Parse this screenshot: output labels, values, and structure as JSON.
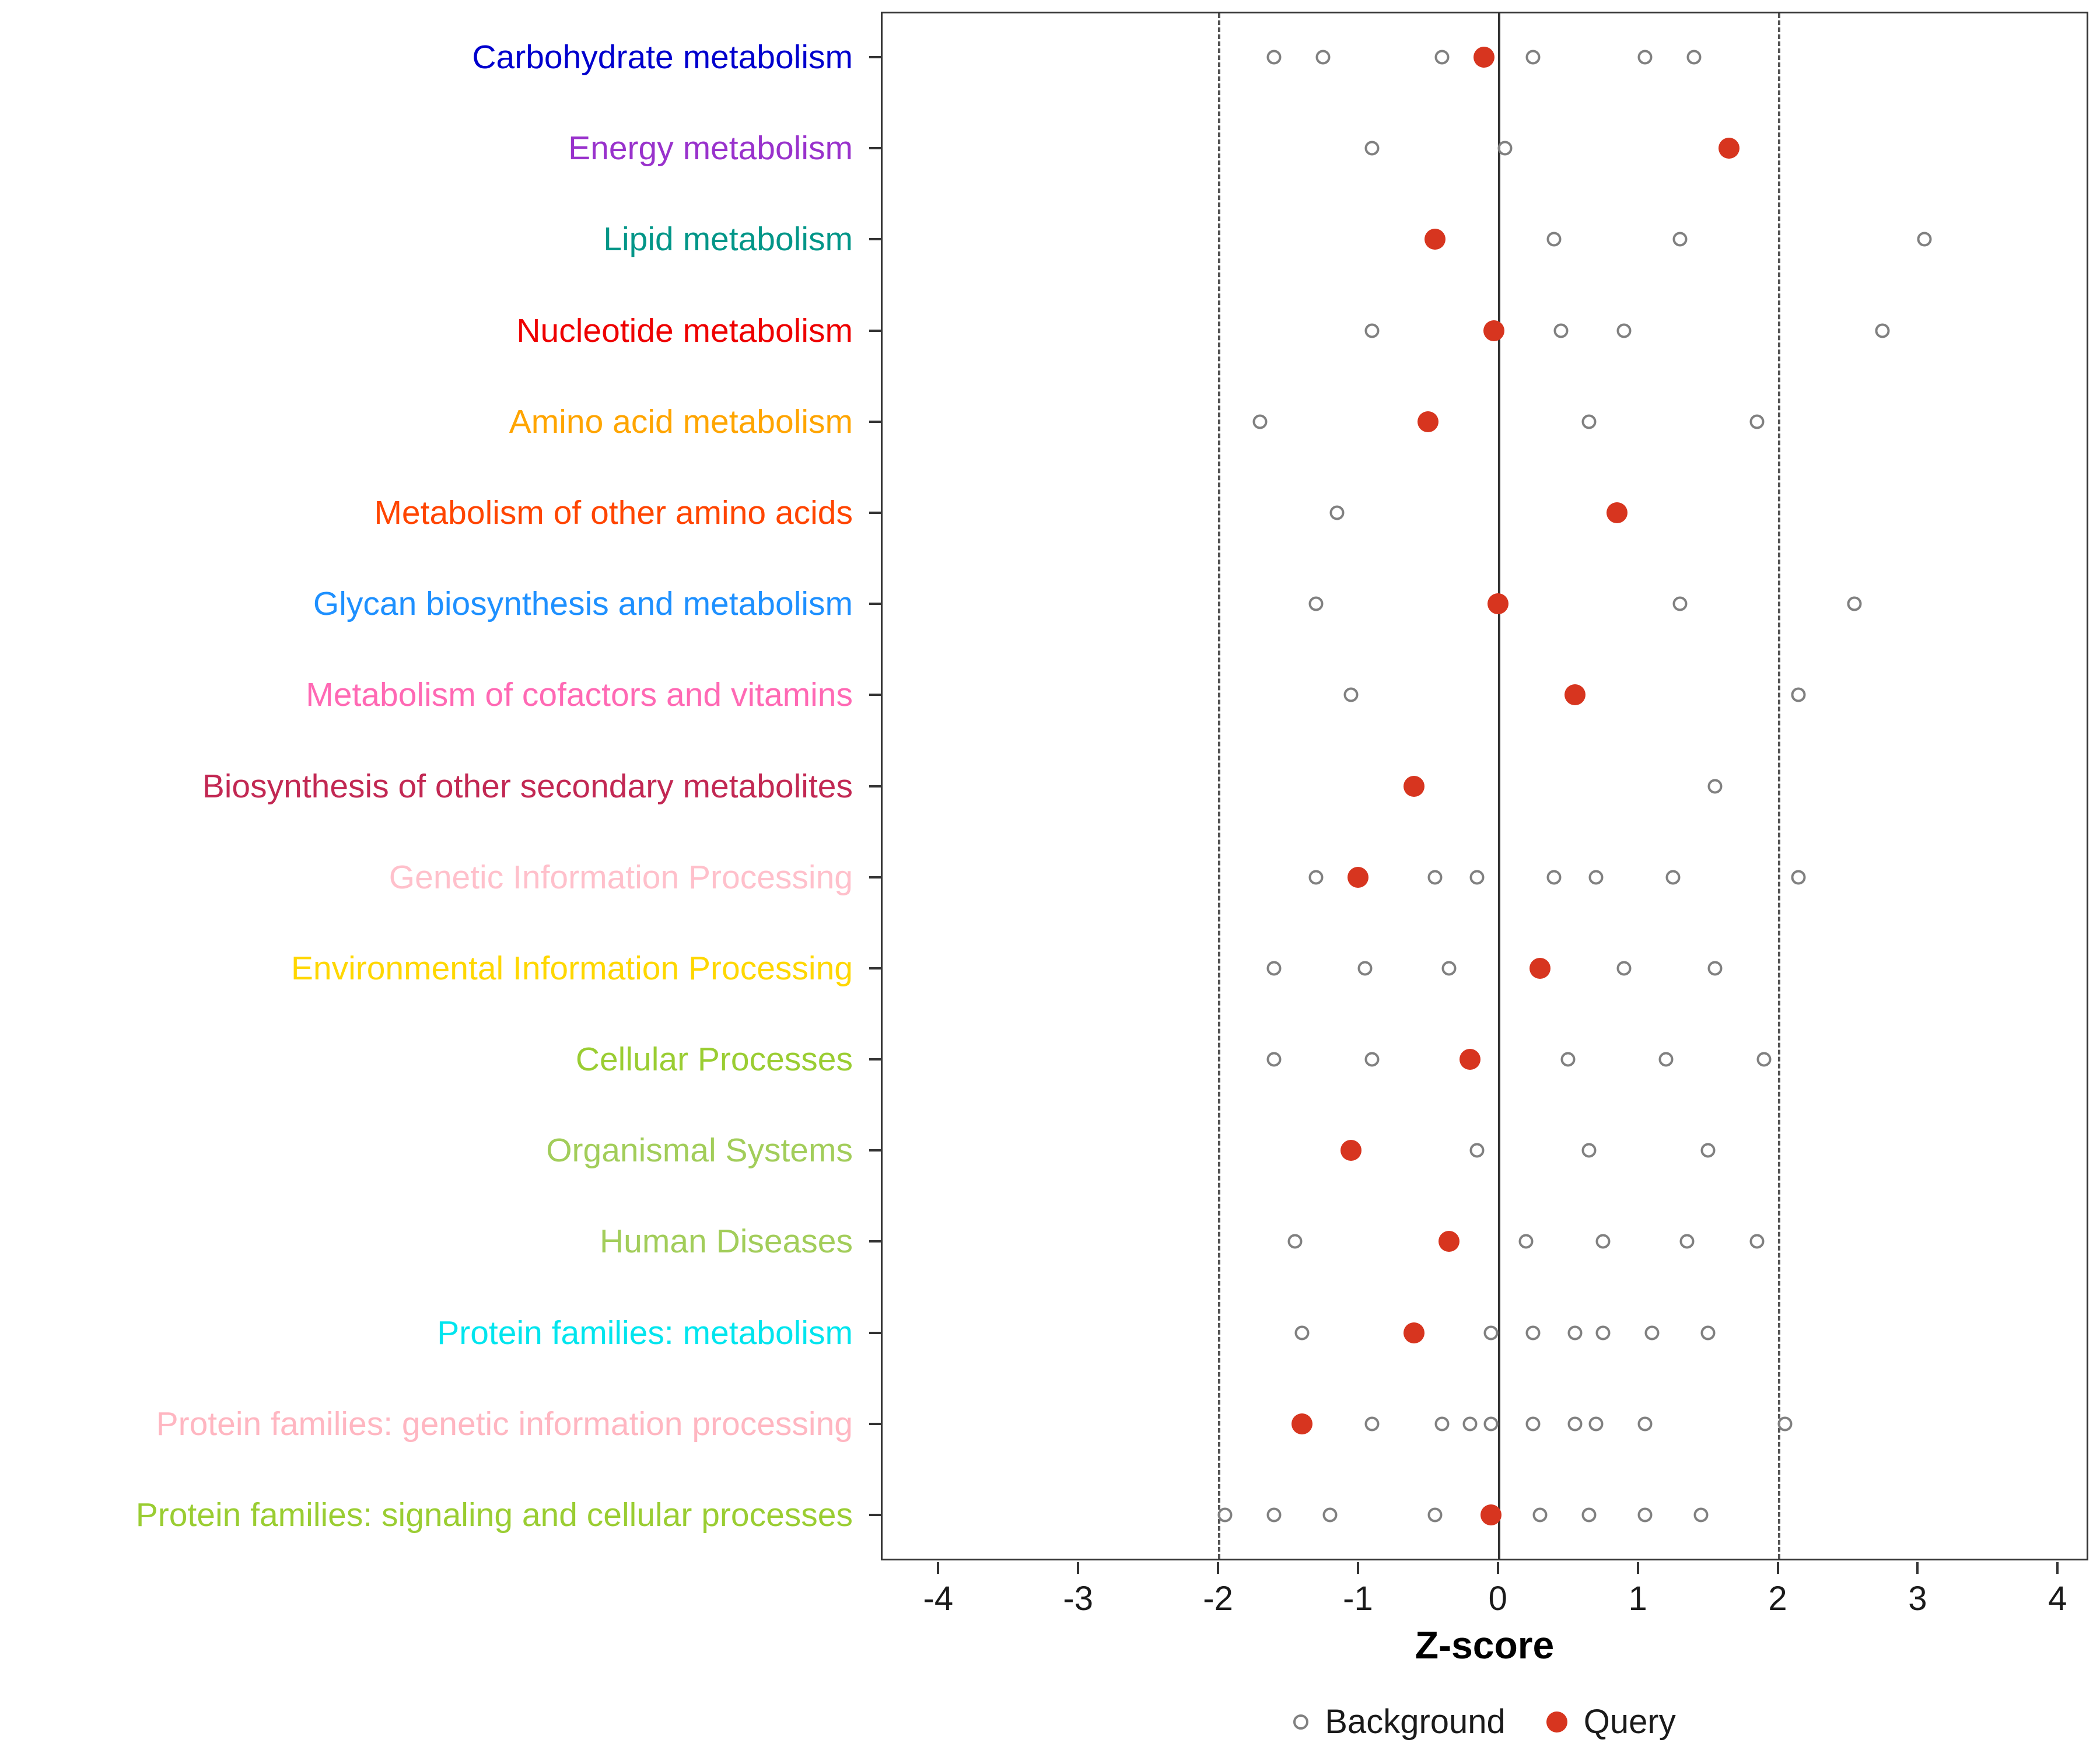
{
  "chart_data": {
    "type": "scatter",
    "title": "",
    "xlabel": "Z-score",
    "x_ticks": [
      -4,
      -3,
      -2,
      -1,
      0,
      1,
      2,
      3,
      4
    ],
    "xlim": [
      -4.41,
      4.22
    ],
    "reference_lines": {
      "dashed": [
        -2,
        2
      ],
      "solid": [
        0
      ]
    },
    "legend": [
      {
        "label": "Background",
        "marker": "open-circle"
      },
      {
        "label": "Query",
        "marker": "filled-circle"
      }
    ],
    "rows": [
      {
        "label": "Carbohydrate metabolism",
        "color": "#0000CD",
        "background": [
          -1.6,
          -1.25,
          -0.4,
          0.25,
          1.05,
          1.4
        ],
        "query": -0.1
      },
      {
        "label": "Energy metabolism",
        "color": "#9932CC",
        "background": [
          -0.9,
          0.05
        ],
        "query": 1.65
      },
      {
        "label": "Lipid metabolism",
        "color": "#029688",
        "background": [
          0.4,
          1.3,
          3.05
        ],
        "query": -0.45
      },
      {
        "label": "Nucleotide metabolism",
        "color": "#EE0000",
        "background": [
          -0.9,
          0.45,
          0.9,
          2.75
        ],
        "query": -0.03
      },
      {
        "label": "Amino acid metabolism",
        "color": "#FFA500",
        "background": [
          -1.7,
          0.65,
          1.85
        ],
        "query": -0.5
      },
      {
        "label": "Metabolism of other amino acids",
        "color": "#FF4500",
        "background": [
          -1.15
        ],
        "query": 0.85
      },
      {
        "label": "Glycan biosynthesis and metabolism",
        "color": "#1E90FF",
        "background": [
          -1.3,
          1.3,
          2.55
        ],
        "query": 0.0
      },
      {
        "label": "Metabolism of cofactors and vitamins",
        "color": "#FF69B4",
        "background": [
          -1.05,
          2.15
        ],
        "query": 0.55
      },
      {
        "label": "Biosynthesis of other secondary metabolites",
        "color": "#C22853",
        "background": [
          1.55
        ],
        "query": -0.6
      },
      {
        "label": "Genetic Information Processing",
        "color": "#FFC0CB",
        "background": [
          -1.3,
          -0.45,
          -0.15,
          0.4,
          0.7,
          1.25,
          2.15
        ],
        "query": -1.0
      },
      {
        "label": "Environmental Information Processing",
        "color": "#FFD700",
        "background": [
          -1.6,
          -0.95,
          -0.35,
          0.9,
          1.55
        ],
        "query": 0.3
      },
      {
        "label": "Cellular Processes",
        "color": "#9ACD32",
        "background": [
          -1.6,
          -0.9,
          0.5,
          1.2,
          1.9
        ],
        "query": -0.2
      },
      {
        "label": "Organismal Systems",
        "color": "#A2CD5A",
        "background": [
          -0.15,
          0.65,
          1.5
        ],
        "query": -1.05
      },
      {
        "label": "Human Diseases",
        "color": "#A2CD5A",
        "background": [
          -1.45,
          0.2,
          0.75,
          1.35,
          1.85
        ],
        "query": -0.35
      },
      {
        "label": "Protein families: metabolism",
        "color": "#00E5EE",
        "background": [
          -1.4,
          -0.05,
          0.25,
          0.55,
          0.75,
          1.1,
          1.5
        ],
        "query": -0.6
      },
      {
        "label": "Protein families: genetic information processing",
        "color": "#FFB6C1",
        "background": [
          -0.9,
          -0.4,
          -0.2,
          -0.05,
          0.25,
          0.55,
          0.7,
          1.05,
          2.05
        ],
        "query": -1.4
      },
      {
        "label": "Protein families: signaling and cellular processes",
        "color": "#9ACD32",
        "background": [
          -1.95,
          -1.6,
          -1.2,
          -0.45,
          0.3,
          0.65,
          1.05,
          1.45
        ],
        "query": -0.05
      }
    ]
  },
  "colors": {
    "background_marker": "#808080",
    "query_marker": "#D7351F",
    "dashed_line": "#555555",
    "zero_line": "#333333",
    "panel_border": "#333333",
    "axis_text": "#1a1a1a"
  }
}
